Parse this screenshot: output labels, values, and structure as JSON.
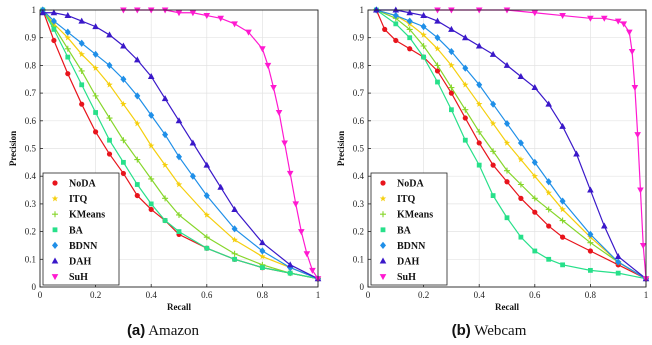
{
  "colors": {
    "NoDA": "#e8141c",
    "ITQ": "#f5cf0e",
    "KMeans": "#86d62a",
    "BA": "#27e08a",
    "BDNN": "#1f8fe8",
    "DAH": "#3a18c9",
    "SuH": "#ff19d0"
  },
  "panels": [
    {
      "letter": "(a)",
      "name": "Amazon"
    },
    {
      "letter": "(b)",
      "name": "Webcam"
    }
  ],
  "chart_data": [
    {
      "type": "line",
      "xlabel": "Recall",
      "ylabel": "Precision",
      "xlim": [
        0,
        1
      ],
      "ylim": [
        0,
        1
      ],
      "xticks": [
        "0",
        "0.2",
        "0.4",
        "0.6",
        "0.8",
        "1"
      ],
      "yticks": [
        "0",
        "0.1",
        "0.2",
        "0.3",
        "0.4",
        "0.5",
        "0.6",
        "0.7",
        "0.8",
        "0.9",
        "1"
      ],
      "grid": true,
      "legend": "bottom-left",
      "series": [
        {
          "name": "NoDA",
          "marker": "circle",
          "x": [
            0.01,
            0.05,
            0.1,
            0.15,
            0.2,
            0.25,
            0.3,
            0.35,
            0.4,
            0.45,
            0.5,
            0.6,
            0.7,
            0.8,
            0.9,
            1.0
          ],
          "y": [
            1.0,
            0.89,
            0.77,
            0.66,
            0.56,
            0.48,
            0.41,
            0.33,
            0.28,
            0.24,
            0.19,
            0.14,
            0.1,
            0.07,
            0.05,
            0.03
          ]
        },
        {
          "name": "ITQ",
          "marker": "star",
          "x": [
            0.01,
            0.05,
            0.1,
            0.15,
            0.2,
            0.25,
            0.3,
            0.35,
            0.4,
            0.45,
            0.5,
            0.6,
            0.7,
            0.8,
            0.9,
            1.0
          ],
          "y": [
            1.0,
            0.95,
            0.9,
            0.84,
            0.79,
            0.73,
            0.66,
            0.59,
            0.51,
            0.44,
            0.37,
            0.26,
            0.17,
            0.11,
            0.07,
            0.03
          ]
        },
        {
          "name": "KMeans",
          "marker": "plus",
          "x": [
            0.01,
            0.05,
            0.1,
            0.15,
            0.2,
            0.25,
            0.3,
            0.35,
            0.4,
            0.45,
            0.5,
            0.6,
            0.7,
            0.8,
            0.9,
            1.0
          ],
          "y": [
            1.0,
            0.94,
            0.86,
            0.78,
            0.69,
            0.61,
            0.53,
            0.46,
            0.39,
            0.32,
            0.26,
            0.18,
            0.12,
            0.08,
            0.05,
            0.03
          ]
        },
        {
          "name": "BA",
          "marker": "square",
          "x": [
            0.01,
            0.05,
            0.1,
            0.15,
            0.2,
            0.25,
            0.3,
            0.35,
            0.4,
            0.45,
            0.5,
            0.6,
            0.7,
            0.8,
            0.9,
            1.0
          ],
          "y": [
            1.0,
            0.93,
            0.83,
            0.73,
            0.63,
            0.53,
            0.45,
            0.37,
            0.3,
            0.24,
            0.2,
            0.14,
            0.1,
            0.07,
            0.05,
            0.03
          ]
        },
        {
          "name": "BDNN",
          "marker": "diamond",
          "x": [
            0.01,
            0.05,
            0.1,
            0.15,
            0.2,
            0.25,
            0.3,
            0.35,
            0.4,
            0.45,
            0.5,
            0.55,
            0.6,
            0.7,
            0.8,
            0.9,
            1.0
          ],
          "y": [
            1.0,
            0.96,
            0.92,
            0.88,
            0.84,
            0.8,
            0.75,
            0.69,
            0.62,
            0.55,
            0.47,
            0.4,
            0.33,
            0.21,
            0.13,
            0.07,
            0.03
          ]
        },
        {
          "name": "DAH",
          "marker": "triangle-up",
          "x": [
            0.01,
            0.05,
            0.1,
            0.15,
            0.2,
            0.25,
            0.3,
            0.35,
            0.4,
            0.45,
            0.5,
            0.55,
            0.6,
            0.65,
            0.7,
            0.8,
            0.9,
            1.0
          ],
          "y": [
            0.99,
            0.99,
            0.98,
            0.96,
            0.94,
            0.91,
            0.87,
            0.82,
            0.76,
            0.68,
            0.6,
            0.52,
            0.44,
            0.36,
            0.28,
            0.16,
            0.08,
            0.03
          ]
        },
        {
          "name": "SuH",
          "marker": "triangle-down",
          "x": [
            0.3,
            0.35,
            0.4,
            0.45,
            0.5,
            0.55,
            0.6,
            0.65,
            0.7,
            0.75,
            0.8,
            0.82,
            0.84,
            0.86,
            0.88,
            0.9,
            0.92,
            0.94,
            0.96,
            0.98,
            1.0
          ],
          "y": [
            1.0,
            1.0,
            1.0,
            1.0,
            0.99,
            0.99,
            0.98,
            0.97,
            0.95,
            0.92,
            0.86,
            0.8,
            0.72,
            0.63,
            0.52,
            0.41,
            0.3,
            0.2,
            0.12,
            0.06,
            0.03
          ]
        }
      ]
    },
    {
      "type": "line",
      "xlabel": "Recall",
      "ylabel": "Precision",
      "xlim": [
        0,
        1
      ],
      "ylim": [
        0,
        1
      ],
      "xticks": [
        "0",
        "0.2",
        "0.4",
        "0.6",
        "0.8",
        "1"
      ],
      "yticks": [
        "0",
        "0.1",
        "0.2",
        "0.3",
        "0.4",
        "0.5",
        "0.6",
        "0.7",
        "0.8",
        "0.9",
        "1"
      ],
      "grid": true,
      "legend": "bottom-left",
      "series": [
        {
          "name": "NoDA",
          "marker": "circle",
          "x": [
            0.03,
            0.06,
            0.1,
            0.15,
            0.2,
            0.25,
            0.3,
            0.35,
            0.4,
            0.45,
            0.5,
            0.55,
            0.6,
            0.65,
            0.7,
            0.8,
            0.9,
            1.0
          ],
          "y": [
            1.0,
            0.93,
            0.89,
            0.86,
            0.83,
            0.78,
            0.7,
            0.61,
            0.52,
            0.44,
            0.38,
            0.32,
            0.27,
            0.22,
            0.18,
            0.13,
            0.08,
            0.03
          ]
        },
        {
          "name": "ITQ",
          "marker": "star",
          "x": [
            0.03,
            0.1,
            0.15,
            0.2,
            0.25,
            0.3,
            0.35,
            0.4,
            0.45,
            0.5,
            0.55,
            0.6,
            0.65,
            0.7,
            0.8,
            0.9,
            1.0
          ],
          "y": [
            1.0,
            0.98,
            0.95,
            0.91,
            0.86,
            0.8,
            0.73,
            0.66,
            0.59,
            0.52,
            0.46,
            0.4,
            0.34,
            0.28,
            0.18,
            0.09,
            0.03
          ]
        },
        {
          "name": "KMeans",
          "marker": "plus",
          "x": [
            0.03,
            0.1,
            0.15,
            0.2,
            0.25,
            0.3,
            0.35,
            0.4,
            0.45,
            0.5,
            0.55,
            0.6,
            0.65,
            0.7,
            0.8,
            0.9,
            1.0
          ],
          "y": [
            1.0,
            0.97,
            0.93,
            0.87,
            0.8,
            0.72,
            0.64,
            0.56,
            0.49,
            0.42,
            0.37,
            0.32,
            0.28,
            0.24,
            0.16,
            0.09,
            0.03
          ]
        },
        {
          "name": "BA",
          "marker": "square",
          "x": [
            0.03,
            0.1,
            0.15,
            0.2,
            0.25,
            0.3,
            0.35,
            0.4,
            0.45,
            0.5,
            0.55,
            0.6,
            0.65,
            0.7,
            0.8,
            0.9,
            1.0
          ],
          "y": [
            1.0,
            0.95,
            0.9,
            0.83,
            0.74,
            0.64,
            0.53,
            0.44,
            0.33,
            0.25,
            0.18,
            0.13,
            0.1,
            0.08,
            0.06,
            0.05,
            0.03
          ]
        },
        {
          "name": "BDNN",
          "marker": "diamond",
          "x": [
            0.03,
            0.1,
            0.15,
            0.2,
            0.25,
            0.3,
            0.35,
            0.4,
            0.45,
            0.5,
            0.55,
            0.6,
            0.65,
            0.7,
            0.8,
            0.9,
            1.0
          ],
          "y": [
            1.0,
            0.98,
            0.96,
            0.94,
            0.9,
            0.85,
            0.79,
            0.73,
            0.66,
            0.59,
            0.52,
            0.45,
            0.38,
            0.31,
            0.19,
            0.09,
            0.03
          ]
        },
        {
          "name": "DAH",
          "marker": "triangle-up",
          "x": [
            0.03,
            0.1,
            0.15,
            0.2,
            0.25,
            0.3,
            0.35,
            0.4,
            0.45,
            0.5,
            0.55,
            0.6,
            0.65,
            0.7,
            0.75,
            0.8,
            0.85,
            0.9,
            1.0
          ],
          "y": [
            1.0,
            1.0,
            0.99,
            0.98,
            0.96,
            0.93,
            0.9,
            0.87,
            0.84,
            0.8,
            0.76,
            0.72,
            0.66,
            0.58,
            0.48,
            0.35,
            0.22,
            0.11,
            0.03
          ]
        },
        {
          "name": "SuH",
          "marker": "triangle-down",
          "x": [
            0.25,
            0.3,
            0.4,
            0.5,
            0.6,
            0.7,
            0.8,
            0.85,
            0.9,
            0.92,
            0.94,
            0.95,
            0.96,
            0.97,
            0.98,
            0.99,
            1.0
          ],
          "y": [
            1.0,
            1.0,
            1.0,
            1.0,
            0.99,
            0.98,
            0.97,
            0.97,
            0.96,
            0.95,
            0.92,
            0.85,
            0.72,
            0.55,
            0.35,
            0.15,
            0.03
          ]
        }
      ]
    }
  ]
}
